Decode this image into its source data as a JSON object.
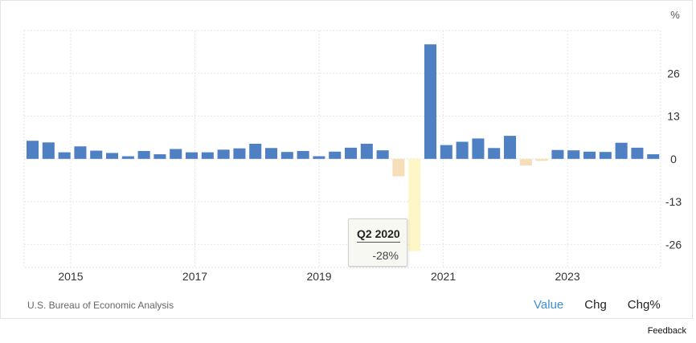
{
  "chart_data": {
    "type": "bar",
    "unit": "%",
    "ylim": [
      -33,
      39
    ],
    "y_ticks": [
      26,
      13,
      0,
      -13,
      -26
    ],
    "y_tick_labels": [
      "26",
      "13",
      "0",
      "-13",
      "-26"
    ],
    "x_start": 2014.25,
    "x_end": 2024.5,
    "x_ticks": [
      {
        "year": 2015,
        "label": "2015"
      },
      {
        "year": 2017,
        "label": "2017"
      },
      {
        "year": 2019,
        "label": "2019"
      },
      {
        "year": 2021,
        "label": "2021"
      },
      {
        "year": 2023,
        "label": "2023"
      }
    ],
    "categories": [
      "Q2 2014",
      "Q3 2014",
      "Q4 2014",
      "Q1 2015",
      "Q2 2015",
      "Q3 2015",
      "Q4 2015",
      "Q1 2016",
      "Q2 2016",
      "Q3 2016",
      "Q4 2016",
      "Q1 2017",
      "Q2 2017",
      "Q3 2017",
      "Q4 2017",
      "Q1 2018",
      "Q2 2018",
      "Q3 2018",
      "Q4 2018",
      "Q1 2019",
      "Q2 2019",
      "Q3 2019",
      "Q4 2019",
      "Q1 2020",
      "Q2 2020",
      "Q3 2020",
      "Q4 2020",
      "Q1 2021",
      "Q2 2021",
      "Q3 2021",
      "Q4 2021",
      "Q1 2022",
      "Q2 2022",
      "Q3 2022",
      "Q4 2022",
      "Q1 2023",
      "Q2 2023",
      "Q3 2023",
      "Q4 2023",
      "Q1 2024"
    ],
    "values": [
      5.5,
      5.0,
      2.0,
      3.8,
      2.5,
      1.8,
      0.8,
      2.4,
      1.4,
      3.0,
      2.0,
      2.0,
      2.8,
      3.2,
      4.6,
      3.3,
      2.1,
      2.4,
      0.8,
      2.2,
      3.4,
      4.6,
      2.6,
      -5.3,
      -28,
      34.8,
      4.2,
      5.2,
      6.2,
      3.3,
      7.0,
      -2.0,
      -0.6,
      2.7,
      2.6,
      2.2,
      2.1,
      4.9,
      3.4,
      1.4
    ],
    "colors": {
      "positive": "#4e80c3",
      "negative": "#f6deb8",
      "highlight": "#fdf6c7"
    },
    "highlight_index": 24,
    "grid": true
  },
  "tooltip": {
    "title": "Q2 2020",
    "value": "-28%"
  },
  "source": "U.S. Bureau of Economic Analysis",
  "tabs": [
    {
      "label": "Value",
      "active": true
    },
    {
      "label": "Chg",
      "active": false
    },
    {
      "label": "Chg%",
      "active": false
    }
  ],
  "feedback_label": "Feedback"
}
